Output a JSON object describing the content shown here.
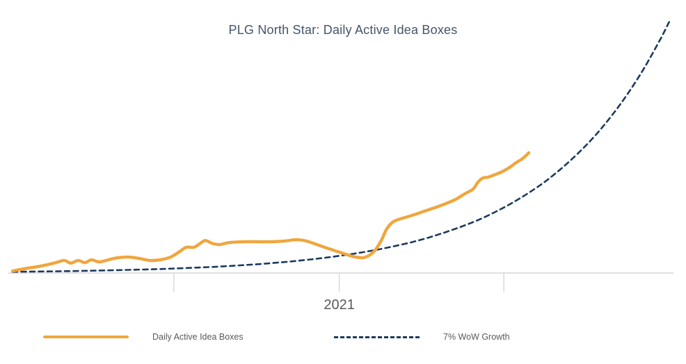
{
  "page": {
    "background": "#ffffff"
  },
  "colors": {
    "title": "#44546a",
    "axis": "#d6d6d6",
    "tick_label": "#595959",
    "legend_text": "#595959"
  },
  "chart_data": {
    "type": "line",
    "title": "PLG North Star: Daily Active Idea Boxes",
    "xlabel": "",
    "ylabel": "",
    "x_unit": "week",
    "x_range": [
      0,
      79
    ],
    "y_range": [
      0,
      100
    ],
    "y_axis_visible": false,
    "grid": false,
    "legend_position": "bottom",
    "x_ticks": [
      {
        "pos": 19.4,
        "label": ""
      },
      {
        "pos": 39.3,
        "label": "2021"
      },
      {
        "pos": 59.1,
        "label": ""
      }
    ],
    "series": [
      {
        "name": "Daily Active Idea Boxes",
        "color": "#f0a63c",
        "style": "solid",
        "points": [
          [
            0,
            0.8
          ],
          [
            1.8,
            1.9
          ],
          [
            3.5,
            2.8
          ],
          [
            5,
            3.9
          ],
          [
            6.2,
            5
          ],
          [
            7,
            3.9
          ],
          [
            7.9,
            5
          ],
          [
            8.7,
            4.1
          ],
          [
            9.5,
            5.2
          ],
          [
            10.4,
            4.4
          ],
          [
            11.5,
            5.2
          ],
          [
            12.7,
            6.1
          ],
          [
            14,
            6.3
          ],
          [
            15.2,
            5.8
          ],
          [
            16.5,
            5
          ],
          [
            17.7,
            5.2
          ],
          [
            19,
            6.3
          ],
          [
            20.1,
            8.5
          ],
          [
            20.9,
            10.2
          ],
          [
            21.8,
            10.2
          ],
          [
            22.6,
            11.8
          ],
          [
            23.2,
            12.9
          ],
          [
            24,
            11.8
          ],
          [
            24.9,
            11.3
          ],
          [
            26.1,
            12.1
          ],
          [
            27.8,
            12.4
          ],
          [
            29.5,
            12.4
          ],
          [
            31.1,
            12.4
          ],
          [
            32.8,
            12.7
          ],
          [
            34.1,
            13.2
          ],
          [
            35.3,
            12.7
          ],
          [
            36.6,
            11.3
          ],
          [
            37.8,
            9.9
          ],
          [
            39.1,
            8.5
          ],
          [
            40.3,
            7.2
          ],
          [
            41.3,
            6.3
          ],
          [
            42.2,
            6.1
          ],
          [
            43,
            7.2
          ],
          [
            43.7,
            9.4
          ],
          [
            44.4,
            13.2
          ],
          [
            45,
            17.4
          ],
          [
            45.7,
            20.1
          ],
          [
            46.4,
            21.2
          ],
          [
            47.2,
            22
          ],
          [
            48.3,
            23.1
          ],
          [
            49.5,
            24.5
          ],
          [
            50.8,
            25.9
          ],
          [
            52.1,
            27.5
          ],
          [
            53.3,
            29.2
          ],
          [
            54.4,
            31.4
          ],
          [
            55.4,
            33.3
          ],
          [
            56,
            36.1
          ],
          [
            56.6,
            37.7
          ],
          [
            57.2,
            38
          ],
          [
            58.1,
            39.1
          ],
          [
            58.9,
            40.2
          ],
          [
            59.8,
            41.9
          ],
          [
            60.6,
            43.8
          ],
          [
            61.4,
            45.5
          ],
          [
            62.1,
            47.7
          ]
        ]
      },
      {
        "name": "7% WoW Growth",
        "color": "#1b3a5e",
        "style": "dashed",
        "points": [
          [
            0,
            0.48
          ],
          [
            2,
            0.55
          ],
          [
            4,
            0.62
          ],
          [
            6,
            0.71
          ],
          [
            8,
            0.82
          ],
          [
            10,
            0.94
          ],
          [
            12,
            1.07
          ],
          [
            14,
            1.23
          ],
          [
            16,
            1.41
          ],
          [
            18,
            1.61
          ],
          [
            20,
            1.84
          ],
          [
            22,
            2.11
          ],
          [
            24,
            2.41
          ],
          [
            26,
            2.76
          ],
          [
            28,
            3.17
          ],
          [
            30,
            3.62
          ],
          [
            32,
            4.15
          ],
          [
            34,
            4.75
          ],
          [
            36,
            5.44
          ],
          [
            38,
            6.23
          ],
          [
            40,
            7.13
          ],
          [
            42,
            8.16
          ],
          [
            44,
            9.34
          ],
          [
            46,
            10.7
          ],
          [
            48,
            12.2
          ],
          [
            50,
            14
          ],
          [
            52,
            16.1
          ],
          [
            54,
            18.4
          ],
          [
            56,
            21
          ],
          [
            58,
            24.1
          ],
          [
            60,
            27.6
          ],
          [
            62,
            31.6
          ],
          [
            64,
            36.1
          ],
          [
            66,
            41.4
          ],
          [
            68,
            47.4
          ],
          [
            70,
            54.2
          ],
          [
            72,
            62.1
          ],
          [
            74,
            71.1
          ],
          [
            76,
            81.4
          ],
          [
            78,
            93.2
          ],
          [
            79,
            99.7
          ]
        ]
      }
    ]
  }
}
